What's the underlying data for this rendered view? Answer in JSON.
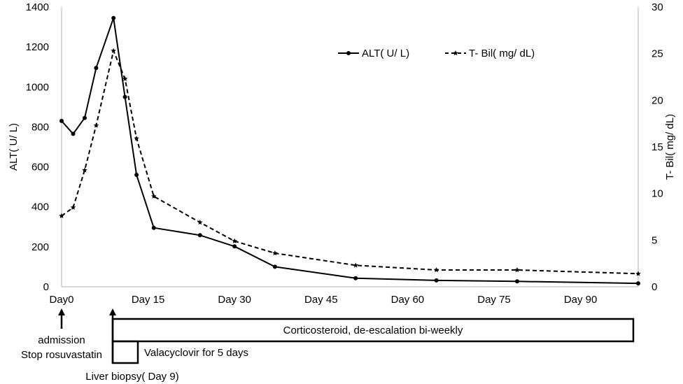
{
  "chart_data": {
    "type": "line",
    "x_unit": "day",
    "xlim": [
      0,
      100
    ],
    "xticks": [
      {
        "x": 0,
        "label": "Day0"
      },
      {
        "x": 15,
        "label": "Day 15"
      },
      {
        "x": 30,
        "label": "Day 30"
      },
      {
        "x": 45,
        "label": "Day 45"
      },
      {
        "x": 60,
        "label": "Day 60"
      },
      {
        "x": 75,
        "label": "Day 75"
      },
      {
        "x": 90,
        "label": "Day 90"
      }
    ],
    "ylabel": "ALT( U/ L)",
    "ylim": [
      0,
      1400
    ],
    "yticks": [
      0,
      200,
      400,
      600,
      800,
      1000,
      1200,
      1400
    ],
    "y2label": "T- Bil( mg/ dL)",
    "y2lim": [
      0,
      30
    ],
    "y2ticks": [
      0,
      5,
      10,
      15,
      20,
      25,
      30
    ],
    "legend_position": "top-right",
    "series": [
      {
        "name": "ALT( U/ L)",
        "axis": "left",
        "style": "solid",
        "marker": "circle",
        "color": "#000000",
        "x": [
          0,
          2,
          4,
          6,
          9,
          11,
          13,
          16,
          24,
          30,
          37,
          51,
          65,
          79,
          100
        ],
        "y": [
          830,
          765,
          845,
          1095,
          1345,
          950,
          560,
          295,
          258,
          202,
          100,
          43,
          32,
          27,
          17
        ]
      },
      {
        "name": "T- Bil( mg/ dL)",
        "axis": "right",
        "style": "dashed",
        "marker": "star",
        "color": "#000000",
        "x": [
          0,
          2,
          4,
          6,
          9,
          11,
          13,
          16,
          24,
          30,
          37,
          51,
          65,
          79,
          100
        ],
        "y": [
          7.6,
          8.5,
          12.5,
          17.3,
          25.3,
          22.3,
          15.9,
          9.7,
          6.9,
          4.9,
          3.6,
          2.3,
          1.8,
          1.8,
          1.4
        ]
      }
    ],
    "annotations": {
      "admission": {
        "day": 0,
        "lines": [
          "admission",
          "Stop rosuvastatin"
        ]
      },
      "liver_biopsy": {
        "day": 9,
        "label": "Liver biopsy( Day 9)"
      },
      "corticosteroid": {
        "start_day": 9,
        "end_day": 100,
        "label": "Corticosteroid, de-escalation bi-weekly"
      },
      "valacyclovir": {
        "start_day": 9,
        "end_day": 13,
        "label": "Valacyclovir for 5 days"
      }
    }
  }
}
